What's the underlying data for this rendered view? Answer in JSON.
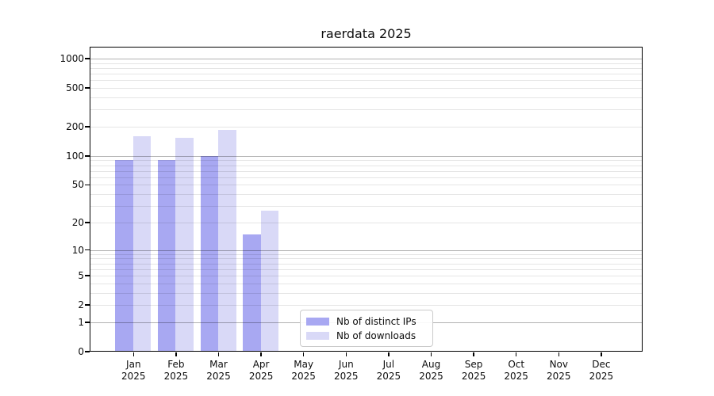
{
  "chart_data": {
    "type": "bar",
    "title": "raerdata 2025",
    "categories": [
      "Jan",
      "Feb",
      "Mar",
      "Apr",
      "May",
      "Jun",
      "Jul",
      "Aug",
      "Sep",
      "Oct",
      "Nov",
      "Dec"
    ],
    "year": "2025",
    "series": [
      {
        "name": "Nb of distinct IPs",
        "color": "#a8a8f2",
        "values": [
          90,
          90,
          100,
          15,
          null,
          null,
          null,
          null,
          null,
          null,
          null,
          null
        ]
      },
      {
        "name": "Nb of downloads",
        "color": "#d9d9f7",
        "values": [
          160,
          155,
          185,
          27,
          null,
          null,
          null,
          null,
          null,
          null,
          null,
          null
        ]
      }
    ],
    "y_axis": {
      "scale": "log1p",
      "tick_labels": [
        "0",
        "1",
        "2",
        "5",
        "10",
        "20",
        "50",
        "100",
        "200",
        "500",
        "1000"
      ],
      "tick_values": [
        0,
        1,
        2,
        5,
        10,
        20,
        50,
        100,
        200,
        500,
        1000
      ],
      "major_grid_values": [
        1,
        10,
        100,
        1000
      ],
      "minor_grid_values": [
        2,
        3,
        4,
        5,
        6,
        7,
        8,
        9,
        20,
        30,
        40,
        50,
        60,
        70,
        80,
        90,
        200,
        300,
        400,
        500,
        600,
        700,
        800,
        900
      ],
      "ylim": [
        0,
        1325
      ]
    },
    "grid": "horizontal, drawn on top of bars",
    "legend_position": "inside-bottom-center",
    "colors": {
      "major_grid": "rgba(0,0,0,0.30)",
      "minor_grid": "rgba(0,0,0,0.10)",
      "spine": "#000000",
      "text": "#0d0d0d",
      "background": "#ffffff"
    }
  }
}
